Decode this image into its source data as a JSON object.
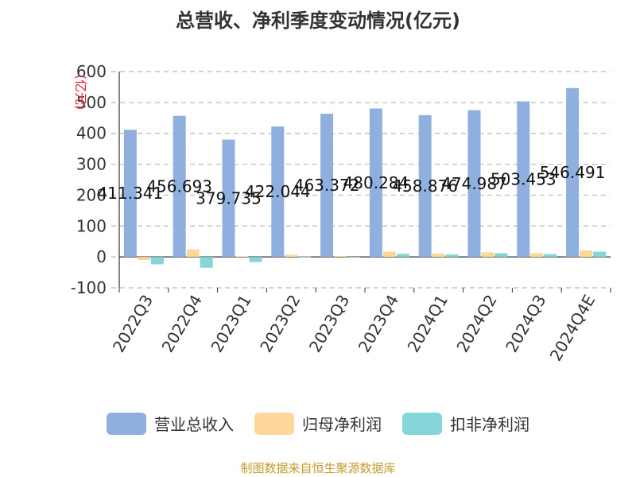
{
  "chart_data": {
    "type": "bar",
    "title": "总营收、净利季度变动情况(亿元)",
    "unit_label": "(亿元)",
    "categories": [
      "2022Q3",
      "2022Q4",
      "2023Q1",
      "2023Q2",
      "2023Q3",
      "2023Q4",
      "2024Q1",
      "2024Q2",
      "2024Q3",
      "2024Q4E"
    ],
    "ylim": [
      -100,
      600
    ],
    "yticks": [
      -100,
      0,
      100,
      200,
      300,
      400,
      500,
      600
    ],
    "grid": true,
    "legend_position": "bottom",
    "series": [
      {
        "name": "营业总收入",
        "color": "#8fb0de",
        "values": [
          411.341,
          456.693,
          379.735,
          422.044,
          463.372,
          480.284,
          458.876,
          474.987,
          503.453,
          546.491
        ],
        "labels": [
          "411.341",
          "456.693",
          "379.735",
          "422.044",
          "463.372",
          "480.284",
          "458.876",
          "474.987",
          "503.453",
          "546.491"
        ]
      },
      {
        "name": "归母净利润",
        "color": "#fdd79a",
        "values": [
          -10,
          24,
          2,
          7,
          3,
          17,
          11,
          15,
          12,
          21
        ]
      },
      {
        "name": "扣非净利润",
        "color": "#84d6d8",
        "values": [
          -24,
          -35,
          -17,
          1,
          0,
          10,
          8,
          12,
          9,
          17
        ]
      }
    ]
  },
  "source_text": "制图数据来自恒生聚源数据库"
}
